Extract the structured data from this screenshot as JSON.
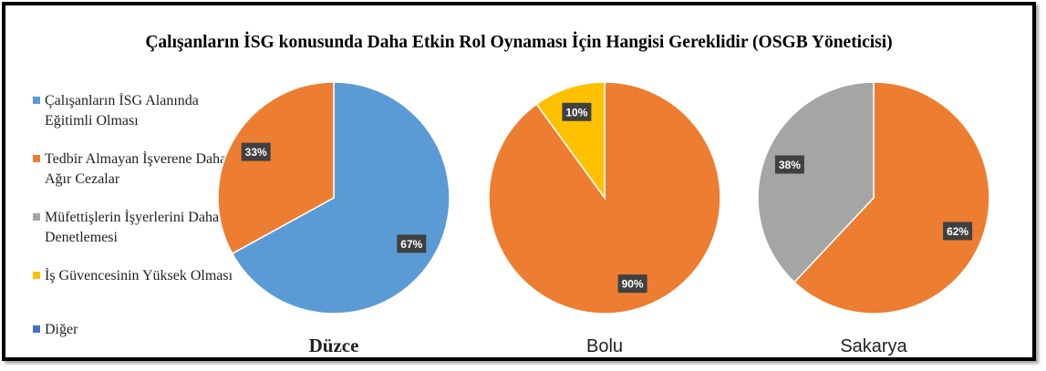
{
  "chart_data": {
    "type": "pie",
    "title": "Çalışanların İSG konusunda Daha Etkin Rol Oynaması İçin Hangisi Gereklidir (OSGB Yöneticisi)",
    "legend_position": "left",
    "legend": [
      {
        "label": "Çalışanların İSG Alanında Eğitimli Olması",
        "color": "#5B9BD5"
      },
      {
        "label": "Tedbir Almayan İşverene Daha Ağır Cezalar",
        "color": "#ED7D31"
      },
      {
        "label": "Müfettişlerin İşyerlerini Daha Sık Denetlemesi",
        "color": "#A5A5A5"
      },
      {
        "label": "İş Güvencesinin Yüksek Olması",
        "color": "#FFC000"
      },
      {
        "label": "Diğer",
        "color": "#4472C4"
      }
    ],
    "pies": [
      {
        "name": "Düzce",
        "slices": [
          {
            "category": "Çalışanların İSG Alanında Eğitimli Olması",
            "value": 67,
            "label": "67%",
            "color": "#5B9BD5"
          },
          {
            "category": "Tedbir Almayan İşverene Daha Ağır Cezalar",
            "value": 33,
            "label": "33%",
            "color": "#ED7D31"
          }
        ]
      },
      {
        "name": "Bolu",
        "slices": [
          {
            "category": "Tedbir Almayan İşverene Daha Ağır Cezalar",
            "value": 90,
            "label": "90%",
            "color": "#ED7D31"
          },
          {
            "category": "İş Güvencesinin Yüksek Olması",
            "value": 10,
            "label": "10%",
            "color": "#FFC000"
          }
        ]
      },
      {
        "name": "Sakarya",
        "slices": [
          {
            "category": "Tedbir Almayan İşverene Daha Ağır Cezalar",
            "value": 62,
            "label": "62%",
            "color": "#ED7D31"
          },
          {
            "category": "Müfettişlerin İşyerlerini Daha Sık Denetlemesi",
            "value": 38,
            "label": "38%",
            "color": "#A5A5A5"
          }
        ]
      }
    ]
  }
}
